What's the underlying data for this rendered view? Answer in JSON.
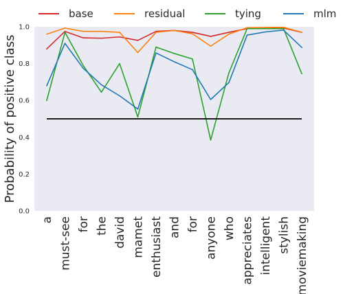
{
  "chart_data": {
    "type": "line",
    "title": "",
    "xlabel": "",
    "ylabel": "Probability of positive class",
    "ylim": [
      0.0,
      1.0
    ],
    "yticks": [
      "0.0",
      "0.2",
      "0.4",
      "0.6",
      "0.8",
      "1.0"
    ],
    "grid": false,
    "legend_position": "top",
    "categories": [
      "a",
      "must-see",
      "for",
      "the",
      "david",
      "mamet",
      "enthusiast",
      "and",
      "for",
      "anyone",
      "who",
      "appreciates",
      "intelligent",
      "stylish",
      "moviemaking"
    ],
    "series": [
      {
        "name": "base",
        "color": "#d62728",
        "values": [
          0.88,
          0.975,
          0.94,
          0.938,
          0.945,
          0.926,
          0.975,
          0.98,
          0.97,
          0.948,
          0.97,
          0.99,
          0.99,
          0.993,
          0.97
        ]
      },
      {
        "name": "residual",
        "color": "#ff7f0e",
        "values": [
          0.96,
          0.993,
          0.975,
          0.975,
          0.97,
          0.86,
          0.97,
          0.98,
          0.962,
          0.895,
          0.96,
          0.995,
          0.997,
          0.997,
          0.97
        ]
      },
      {
        "name": "tying",
        "color": "#2ca02c",
        "values": [
          0.6,
          0.97,
          0.79,
          0.645,
          0.8,
          0.51,
          0.89,
          0.855,
          0.825,
          0.385,
          0.75,
          0.99,
          0.99,
          0.99,
          0.745
        ]
      },
      {
        "name": "mlm",
        "color": "#1f77b4",
        "values": [
          0.68,
          0.91,
          0.775,
          0.685,
          0.625,
          0.553,
          0.858,
          0.81,
          0.767,
          0.605,
          0.697,
          0.955,
          0.972,
          0.982,
          0.888
        ]
      }
    ],
    "reference_line": {
      "value": 0.5,
      "color": "#000000"
    },
    "background_color": "#eaeaf2"
  }
}
